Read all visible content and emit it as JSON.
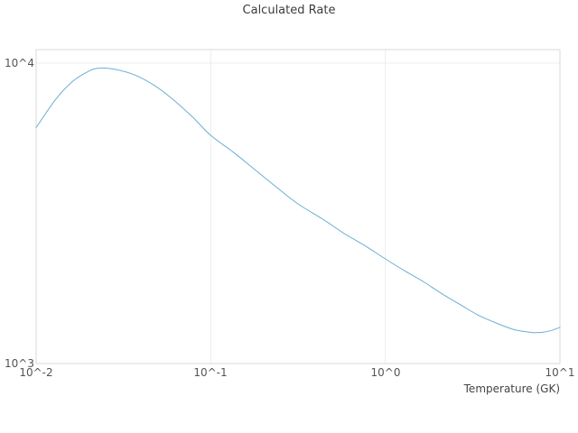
{
  "chart_data": {
    "type": "line",
    "title": "Calculated Rate",
    "xlabel": "Temperature (GK)",
    "ylabel": "",
    "x_scale": "log",
    "y_scale": "log",
    "xlim": [
      0.01,
      10
    ],
    "ylim": [
      1000,
      10000
    ],
    "grid": true,
    "legend": "none",
    "line_color": "#6baed6",
    "grid_color": "#ececec",
    "border_color": "#d9d9d9",
    "x_tick_labels": [
      "10^-2",
      "10^-1",
      "10^0",
      "10^1"
    ],
    "x_tick_values": [
      0.01,
      0.1,
      1,
      10
    ],
    "y_tick_labels": [
      "10^3",
      "10^4"
    ],
    "y_tick_values": [
      1000,
      10000
    ],
    "series": [
      {
        "name": "calculated-rate",
        "x": [
          0.01,
          0.013,
          0.0162,
          0.02,
          0.0229,
          0.028,
          0.0372,
          0.048,
          0.0603,
          0.078,
          0.1,
          0.135,
          0.174,
          0.24,
          0.316,
          0.44,
          0.575,
          0.78,
          1.0,
          1.3,
          1.66,
          2.1,
          2.69,
          3.4,
          4.37,
          5.4,
          6.17,
          7.0,
          7.94,
          9.0,
          10.0
        ],
        "y": [
          6100,
          7600,
          8700,
          9400,
          9620,
          9550,
          9100,
          8400,
          7600,
          6650,
          5750,
          5050,
          4480,
          3850,
          3400,
          3020,
          2720,
          2450,
          2230,
          2030,
          1870,
          1710,
          1570,
          1450,
          1360,
          1300,
          1280,
          1268,
          1270,
          1290,
          1320
        ]
      }
    ]
  }
}
